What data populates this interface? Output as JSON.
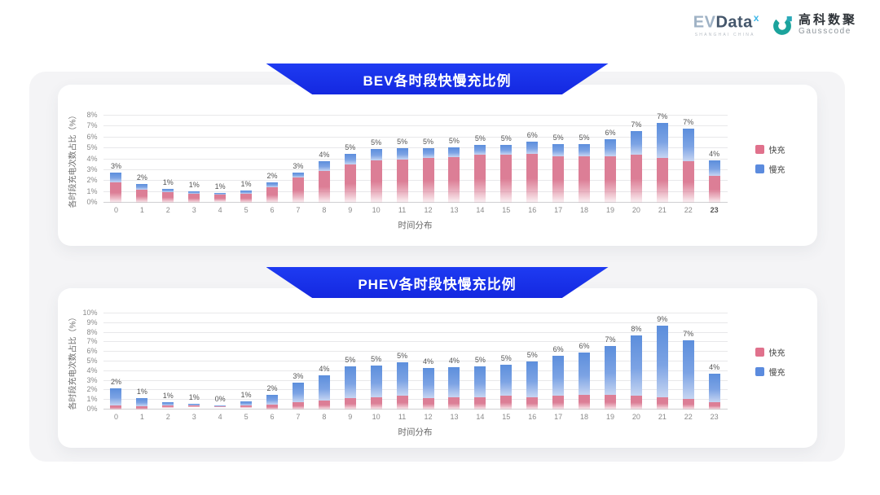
{
  "header": {
    "evdata_logo": {
      "part1": "EV",
      "part2": "Data",
      "sup": "x",
      "subtext": "SHANGHAI CHINA"
    },
    "gausscode_logo": {
      "cn": "高科数聚",
      "en": "Gausscode",
      "icon_color": "#1BA39C"
    }
  },
  "colors": {
    "banner_blue": "#1A2FEA",
    "fast_pink": "#DC7E96",
    "slow_blue": "#5C8EDC",
    "panel_gray": "#F4F4F6"
  },
  "chart_data": [
    {
      "type": "bar",
      "stacked": true,
      "title": "BEV各时段快慢充比例",
      "xlabel": "时间分布",
      "ylabel": "各时段充电次数占比（%）",
      "ylim": [
        0,
        8
      ],
      "grid": true,
      "legend_position": "right",
      "ytick_labels": [
        "0%",
        "1%",
        "2%",
        "3%",
        "4%",
        "5%",
        "6%",
        "7%",
        "8%"
      ],
      "categories": [
        "0",
        "1",
        "2",
        "3",
        "4",
        "5",
        "6",
        "7",
        "8",
        "9",
        "10",
        "11",
        "12",
        "13",
        "14",
        "15",
        "16",
        "17",
        "18",
        "19",
        "20",
        "21",
        "22",
        "23"
      ],
      "xtick_emphasis": "23",
      "series": [
        {
          "name": "快充",
          "color": "#E0718C",
          "values": [
            1.9,
            1.2,
            0.95,
            0.8,
            0.7,
            0.85,
            1.45,
            2.3,
            2.9,
            3.5,
            3.9,
            4.0,
            4.1,
            4.2,
            4.4,
            4.4,
            4.5,
            4.3,
            4.3,
            4.3,
            4.4,
            4.1,
            3.8,
            2.5
          ]
        },
        {
          "name": "慢充",
          "color": "#5B8BDE",
          "values": [
            0.9,
            0.5,
            0.3,
            0.25,
            0.2,
            0.25,
            0.4,
            0.5,
            0.9,
            1.0,
            1.0,
            1.0,
            0.9,
            0.9,
            0.9,
            0.9,
            1.1,
            1.1,
            1.1,
            1.5,
            2.2,
            3.2,
            3.0,
            1.4
          ]
        }
      ],
      "bar_labels": [
        "3%",
        "2%",
        "1%",
        "1%",
        "1%",
        "1%",
        "2%",
        "3%",
        "4%",
        "5%",
        "5%",
        "5%",
        "5%",
        "5%",
        "5%",
        "5%",
        "6%",
        "5%",
        "5%",
        "6%",
        "7%",
        "7%",
        "7%",
        "4%"
      ]
    },
    {
      "type": "bar",
      "stacked": true,
      "title": "PHEV各时段快慢充比例",
      "xlabel": "时间分布",
      "ylabel": "各时段充电次数占比（%）",
      "ylim": [
        0,
        10
      ],
      "grid": true,
      "legend_position": "right",
      "ytick_labels": [
        "0%",
        "1%",
        "2%",
        "3%",
        "4%",
        "5%",
        "6%",
        "7%",
        "8%",
        "9%",
        "10%"
      ],
      "categories": [
        "0",
        "1",
        "2",
        "3",
        "4",
        "5",
        "6",
        "7",
        "8",
        "9",
        "10",
        "11",
        "12",
        "13",
        "14",
        "15",
        "16",
        "17",
        "18",
        "19",
        "20",
        "21",
        "22",
        "23"
      ],
      "xtick_emphasis": "",
      "series": [
        {
          "name": "快充",
          "color": "#E0718C",
          "values": [
            0.45,
            0.35,
            0.3,
            0.25,
            0.2,
            0.35,
            0.55,
            0.8,
            0.95,
            1.2,
            1.3,
            1.4,
            1.2,
            1.25,
            1.3,
            1.4,
            1.3,
            1.4,
            1.5,
            1.5,
            1.4,
            1.3,
            1.1,
            0.75
          ]
        },
        {
          "name": "慢充",
          "color": "#5B8BDE",
          "values": [
            1.75,
            0.85,
            0.5,
            0.35,
            0.25,
            0.5,
            0.95,
            2.0,
            2.65,
            3.3,
            3.3,
            3.5,
            3.1,
            3.15,
            3.2,
            3.3,
            3.7,
            4.2,
            4.4,
            5.1,
            6.3,
            7.4,
            6.1,
            2.95
          ]
        }
      ],
      "bar_labels": [
        "2%",
        "1%",
        "1%",
        "1%",
        "0%",
        "1%",
        "2%",
        "3%",
        "4%",
        "5%",
        "5%",
        "5%",
        "4%",
        "4%",
        "5%",
        "5%",
        "5%",
        "6%",
        "6%",
        "7%",
        "8%",
        "9%",
        "7%",
        "4%"
      ]
    }
  ]
}
